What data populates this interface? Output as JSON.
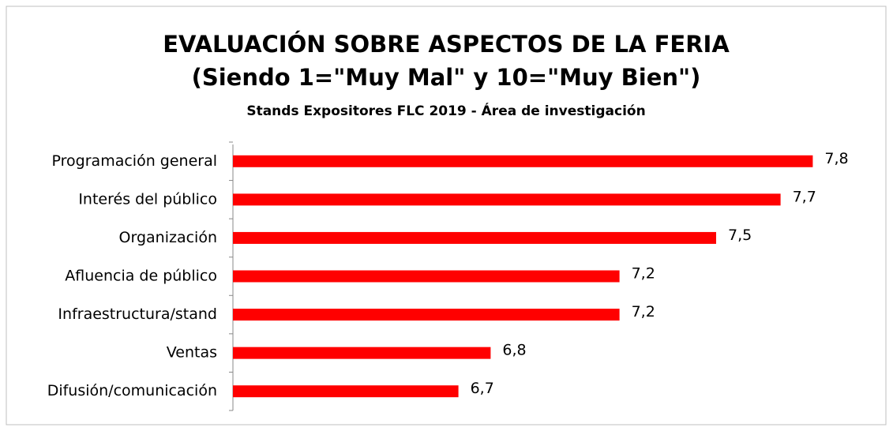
{
  "chart_data": {
    "type": "bar",
    "orientation": "horizontal",
    "title": [
      "EVALUACIÓN SOBRE ASPECTOS DE LA FERIA",
      "(Siendo 1=\"Muy Mal\" y 10=\"Muy Bien\")"
    ],
    "subtitle": "Stands Expositores FLC 2019 - Área de investigación",
    "categories": [
      "Programación general",
      "Interés del público",
      "Organización",
      "Afluencia de público",
      "Infraestructura/stand",
      "Ventas",
      "Difusión/comunicación"
    ],
    "values": [
      7.8,
      7.7,
      7.5,
      7.2,
      7.2,
      6.8,
      6.7
    ],
    "value_labels": [
      "7,8",
      "7,7",
      "7,5",
      "7,2",
      "7,2",
      "6,8",
      "6,7"
    ],
    "color": "#ff0000",
    "xlim": [
      6,
      8
    ]
  }
}
